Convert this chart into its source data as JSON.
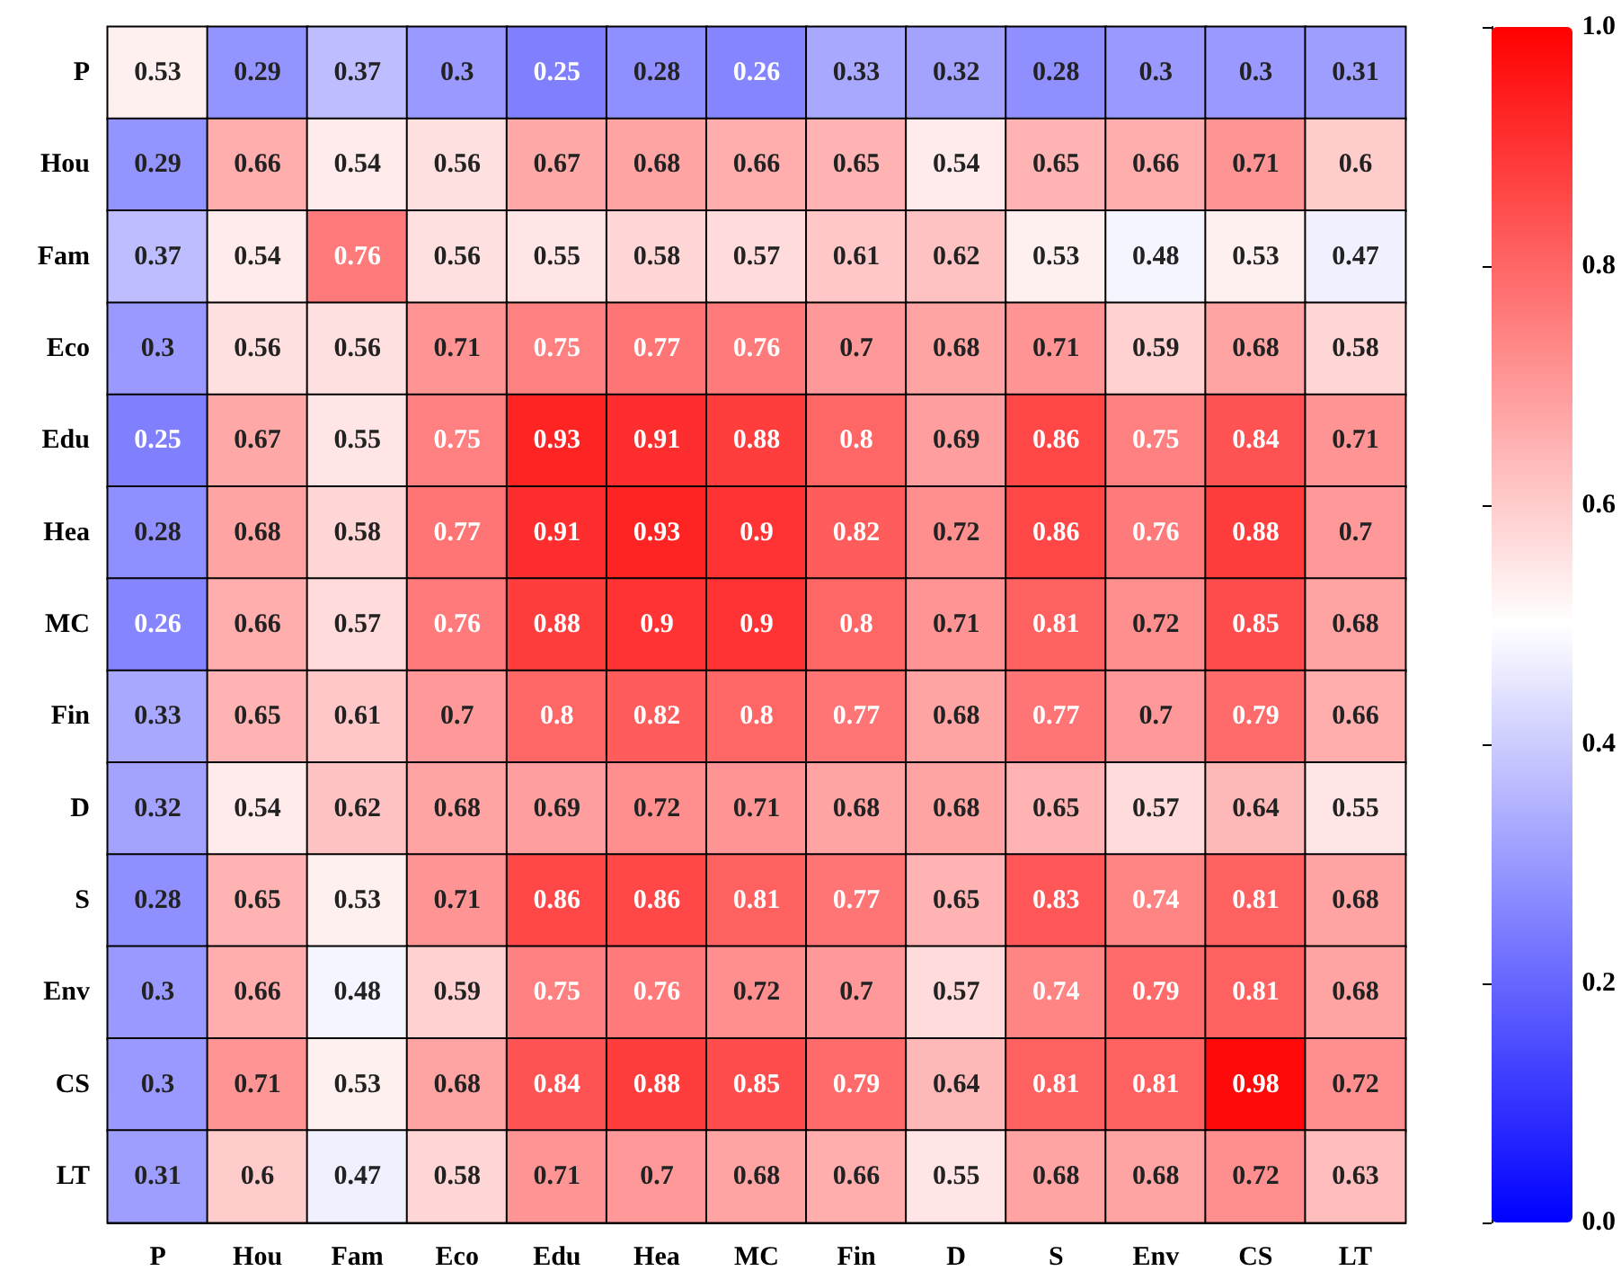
{
  "chart_data": {
    "type": "heatmap",
    "categories": [
      "P",
      "Hou",
      "Fam",
      "Eco",
      "Edu",
      "Hea",
      "MC",
      "Fin",
      "D",
      "S",
      "Env",
      "CS",
      "LT"
    ],
    "y_categories": [
      "P",
      "Hou",
      "Fam",
      "Eco",
      "Edu",
      "Hea",
      "MC",
      "Fin",
      "D",
      "S",
      "Env",
      "CS",
      "LT"
    ],
    "cells": [
      [
        0.53,
        0.29,
        0.37,
        0.3,
        0.25,
        0.28,
        0.26,
        0.33,
        0.32,
        0.28,
        0.3,
        0.3,
        0.31
      ],
      [
        0.29,
        0.66,
        0.54,
        0.56,
        0.67,
        0.68,
        0.66,
        0.65,
        0.54,
        0.65,
        0.66,
        0.71,
        0.6
      ],
      [
        0.37,
        0.54,
        0.76,
        0.56,
        0.55,
        0.58,
        0.57,
        0.61,
        0.62,
        0.53,
        0.48,
        0.53,
        0.47
      ],
      [
        0.3,
        0.56,
        0.56,
        0.71,
        0.75,
        0.77,
        0.76,
        0.7,
        0.68,
        0.71,
        0.59,
        0.68,
        0.58
      ],
      [
        0.25,
        0.67,
        0.55,
        0.75,
        0.93,
        0.91,
        0.88,
        0.8,
        0.69,
        0.86,
        0.75,
        0.84,
        0.71
      ],
      [
        0.28,
        0.68,
        0.58,
        0.77,
        0.91,
        0.93,
        0.9,
        0.82,
        0.72,
        0.86,
        0.76,
        0.88,
        0.7
      ],
      [
        0.26,
        0.66,
        0.57,
        0.76,
        0.88,
        0.9,
        0.9,
        0.8,
        0.71,
        0.81,
        0.72,
        0.85,
        0.68
      ],
      [
        0.33,
        0.65,
        0.61,
        0.7,
        0.8,
        0.82,
        0.8,
        0.77,
        0.68,
        0.77,
        0.7,
        0.79,
        0.66
      ],
      [
        0.32,
        0.54,
        0.62,
        0.68,
        0.69,
        0.72,
        0.71,
        0.68,
        0.68,
        0.65,
        0.57,
        0.64,
        0.55
      ],
      [
        0.28,
        0.65,
        0.53,
        0.71,
        0.86,
        0.86,
        0.81,
        0.77,
        0.65,
        0.83,
        0.74,
        0.81,
        0.68
      ],
      [
        0.3,
        0.66,
        0.48,
        0.59,
        0.75,
        0.76,
        0.72,
        0.7,
        0.57,
        0.74,
        0.79,
        0.81,
        0.68
      ],
      [
        0.3,
        0.71,
        0.53,
        0.68,
        0.84,
        0.88,
        0.85,
        0.79,
        0.64,
        0.81,
        0.81,
        0.98,
        0.72
      ],
      [
        0.31,
        0.6,
        0.47,
        0.58,
        0.71,
        0.7,
        0.68,
        0.66,
        0.55,
        0.68,
        0.68,
        0.72,
        0.63
      ]
    ],
    "clim": [
      0,
      1
    ],
    "cticks": [
      {
        "value": 0,
        "label": "0.0"
      },
      {
        "value": 0.2,
        "label": "0.2"
      },
      {
        "value": 0.4,
        "label": "0.4"
      },
      {
        "value": 0.6,
        "label": "0.6"
      },
      {
        "value": 0.8,
        "label": "0.8"
      },
      {
        "value": 1,
        "label": "1.0"
      }
    ],
    "data_labels": true
  }
}
